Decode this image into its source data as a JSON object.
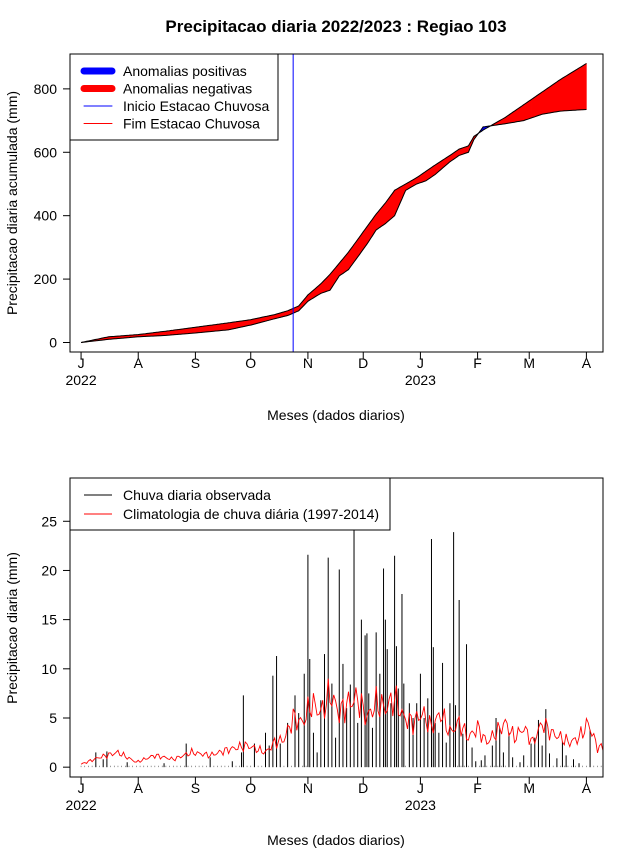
{
  "title": "Precipitacao diaria 2022/2023 : Regiao 103",
  "colors": {
    "positive": "#0000ff",
    "negative": "#ff0000",
    "start_line": "#0000ff",
    "end_line": "#ff0000",
    "observed": "#000000",
    "climatology": "#ff0000"
  },
  "chart_data": [
    {
      "type": "area",
      "name": "accumulated",
      "xlabel": "Meses (dados diarios)",
      "ylabel": "Precipitacao diaria acumulada (mm)",
      "ylim": [
        -30,
        910
      ],
      "xlim_days": [
        -6,
        283
      ],
      "yticks": [
        0,
        200,
        400,
        600,
        800
      ],
      "month_ticks": [
        {
          "day": 0,
          "label": "J"
        },
        {
          "day": 31,
          "label": "A"
        },
        {
          "day": 62,
          "label": "S"
        },
        {
          "day": 92,
          "label": "O"
        },
        {
          "day": 123,
          "label": "N"
        },
        {
          "day": 153,
          "label": "D"
        },
        {
          "day": 184,
          "label": "J"
        },
        {
          "day": 215,
          "label": "F"
        },
        {
          "day": 243,
          "label": "M"
        },
        {
          "day": 274,
          "label": "A"
        }
      ],
      "year_labels": [
        {
          "day": 0,
          "label": "2022"
        },
        {
          "day": 184,
          "label": "2023"
        }
      ],
      "legend": {
        "position": "top-left",
        "entries": [
          "Anomalias positivas",
          "Anomalias negativas",
          "Inicio Estacao Chuvosa",
          "Fim Estacao Chuvosa"
        ]
      },
      "rainy_season_start_day": 115,
      "observed_accumulated": {
        "days": [
          0,
          15,
          31,
          45,
          62,
          80,
          92,
          105,
          112,
          118,
          123,
          130,
          135,
          140,
          145,
          150,
          155,
          160,
          165,
          170,
          176,
          182,
          187,
          192,
          200,
          205,
          210,
          213,
          218,
          230,
          240,
          250,
          260,
          274
        ],
        "values": [
          0,
          10,
          18,
          22,
          30,
          40,
          55,
          75,
          85,
          100,
          130,
          155,
          165,
          210,
          230,
          270,
          310,
          355,
          375,
          400,
          480,
          500,
          510,
          530,
          570,
          590,
          600,
          640,
          680,
          690,
          700,
          720,
          730,
          735
        ]
      },
      "climatology_accumulated": {
        "days": [
          0,
          15,
          31,
          45,
          62,
          80,
          92,
          105,
          112,
          118,
          123,
          130,
          135,
          140,
          145,
          150,
          155,
          160,
          165,
          170,
          176,
          182,
          187,
          192,
          200,
          205,
          210,
          213,
          218,
          230,
          240,
          250,
          260,
          274
        ],
        "values": [
          0,
          18,
          25,
          35,
          48,
          62,
          72,
          88,
          100,
          115,
          150,
          185,
          215,
          250,
          285,
          325,
          365,
          405,
          440,
          480,
          500,
          520,
          540,
          560,
          590,
          610,
          620,
          650,
          670,
          710,
          750,
          790,
          830,
          880
        ]
      }
    },
    {
      "type": "bar",
      "name": "daily",
      "xlabel": "Meses (dados diarios)",
      "ylabel": "Precipitacao diaria (mm)",
      "ylim": [
        -1,
        29.4
      ],
      "xlim_days": [
        -6,
        283
      ],
      "yticks": [
        0,
        5,
        10,
        15,
        20,
        25
      ],
      "legend": {
        "position": "top-left",
        "entries": [
          "Chuva diaria observada",
          "Climatologia de chuva diária (1997-2014)"
        ]
      },
      "observed_daily": [
        {
          "day": 8,
          "mm": 1.5
        },
        {
          "day": 12,
          "mm": 0.8
        },
        {
          "day": 14,
          "mm": 1.6
        },
        {
          "day": 25,
          "mm": 0.5
        },
        {
          "day": 45,
          "mm": 0.4
        },
        {
          "day": 57,
          "mm": 2.4
        },
        {
          "day": 70,
          "mm": 1.0
        },
        {
          "day": 82,
          "mm": 0.6
        },
        {
          "day": 87,
          "mm": 1.5
        },
        {
          "day": 88,
          "mm": 7.3
        },
        {
          "day": 94,
          "mm": 2.4
        },
        {
          "day": 100,
          "mm": 3.5
        },
        {
          "day": 102,
          "mm": 2.2
        },
        {
          "day": 104,
          "mm": 9.3
        },
        {
          "day": 106,
          "mm": 11.3
        },
        {
          "day": 108,
          "mm": 2.4
        },
        {
          "day": 112,
          "mm": 4.5
        },
        {
          "day": 116,
          "mm": 7.3
        },
        {
          "day": 118,
          "mm": 5.5
        },
        {
          "day": 121,
          "mm": 9.5
        },
        {
          "day": 123,
          "mm": 21.6
        },
        {
          "day": 124,
          "mm": 11.0
        },
        {
          "day": 126,
          "mm": 3.5
        },
        {
          "day": 128,
          "mm": 1.5
        },
        {
          "day": 130,
          "mm": 6.8
        },
        {
          "day": 132,
          "mm": 11.5
        },
        {
          "day": 134,
          "mm": 21.3
        },
        {
          "day": 136,
          "mm": 8.5
        },
        {
          "day": 138,
          "mm": 3.0
        },
        {
          "day": 140,
          "mm": 20.1
        },
        {
          "day": 142,
          "mm": 10.5
        },
        {
          "day": 144,
          "mm": 6.0
        },
        {
          "day": 146,
          "mm": 8.4
        },
        {
          "day": 148,
          "mm": 25.2
        },
        {
          "day": 150,
          "mm": 4.5
        },
        {
          "day": 152,
          "mm": 15.0
        },
        {
          "day": 154,
          "mm": 13.4
        },
        {
          "day": 155,
          "mm": 13.6
        },
        {
          "day": 156,
          "mm": 7.5
        },
        {
          "day": 158,
          "mm": 4.0
        },
        {
          "day": 160,
          "mm": 13.7
        },
        {
          "day": 162,
          "mm": 9.5
        },
        {
          "day": 164,
          "mm": 20.2
        },
        {
          "day": 165,
          "mm": 15.0
        },
        {
          "day": 166,
          "mm": 12.0
        },
        {
          "day": 168,
          "mm": 6.5
        },
        {
          "day": 170,
          "mm": 21.5
        },
        {
          "day": 171,
          "mm": 12.3
        },
        {
          "day": 172,
          "mm": 8.0
        },
        {
          "day": 174,
          "mm": 17.6
        },
        {
          "day": 175,
          "mm": 8.5
        },
        {
          "day": 178,
          "mm": 6.5
        },
        {
          "day": 180,
          "mm": 5.0
        },
        {
          "day": 182,
          "mm": 6.5
        },
        {
          "day": 184,
          "mm": 9.5
        },
        {
          "day": 186,
          "mm": 5.0
        },
        {
          "day": 188,
          "mm": 7.0
        },
        {
          "day": 190,
          "mm": 23.2
        },
        {
          "day": 191,
          "mm": 12.2
        },
        {
          "day": 192,
          "mm": 4.5
        },
        {
          "day": 194,
          "mm": 3.5
        },
        {
          "day": 196,
          "mm": 10.6
        },
        {
          "day": 198,
          "mm": 2.5
        },
        {
          "day": 200,
          "mm": 6.5
        },
        {
          "day": 202,
          "mm": 23.9
        },
        {
          "day": 203,
          "mm": 6.3
        },
        {
          "day": 205,
          "mm": 17.0
        },
        {
          "day": 207,
          "mm": 3.4
        },
        {
          "day": 209,
          "mm": 12.5
        },
        {
          "day": 212,
          "mm": 2.0
        },
        {
          "day": 214,
          "mm": 0.6
        },
        {
          "day": 217,
          "mm": 0.7
        },
        {
          "day": 219,
          "mm": 1.2
        },
        {
          "day": 223,
          "mm": 2.2
        },
        {
          "day": 225,
          "mm": 5.0
        },
        {
          "day": 227,
          "mm": 4.0
        },
        {
          "day": 229,
          "mm": 1.5
        },
        {
          "day": 232,
          "mm": 3.5
        },
        {
          "day": 234,
          "mm": 1.0
        },
        {
          "day": 238,
          "mm": 0.5
        },
        {
          "day": 240,
          "mm": 1.2
        },
        {
          "day": 244,
          "mm": 2.4
        },
        {
          "day": 246,
          "mm": 3.0
        },
        {
          "day": 248,
          "mm": 4.8
        },
        {
          "day": 250,
          "mm": 2.2
        },
        {
          "day": 252,
          "mm": 5.9
        },
        {
          "day": 254,
          "mm": 1.4
        },
        {
          "day": 258,
          "mm": 0.9
        },
        {
          "day": 261,
          "mm": 2.6
        },
        {
          "day": 263,
          "mm": 1.2
        },
        {
          "day": 267,
          "mm": 0.8
        },
        {
          "day": 270,
          "mm": 0.4
        },
        {
          "day": 276,
          "mm": 3.8
        }
      ],
      "climatology_daily": {
        "days": [
          0,
          10,
          20,
          30,
          40,
          50,
          60,
          70,
          80,
          90,
          100,
          105,
          110,
          115,
          120,
          125,
          130,
          135,
          140,
          145,
          150,
          155,
          160,
          165,
          170,
          175,
          180,
          185,
          190,
          195,
          200,
          205,
          210,
          215,
          220,
          225,
          230,
          235,
          240,
          245,
          250,
          255,
          260,
          265,
          270,
          275,
          280,
          283
        ],
        "values": [
          0.3,
          1.0,
          1.5,
          0.5,
          1.2,
          0.8,
          1.5,
          1.2,
          1.8,
          2.2,
          1.5,
          2.5,
          2.8,
          5.0,
          4.5,
          6.5,
          5.5,
          7.5,
          5.5,
          6.5,
          7.0,
          5.0,
          6.5,
          6.0,
          7.0,
          5.0,
          4.5,
          5.5,
          4.0,
          5.5,
          3.5,
          4.5,
          3.0,
          4.0,
          2.5,
          3.5,
          4.5,
          3.0,
          4.0,
          2.5,
          4.5,
          3.5,
          3.0,
          2.5,
          3.0,
          4.5,
          2.0,
          2.0
        ]
      }
    }
  ]
}
